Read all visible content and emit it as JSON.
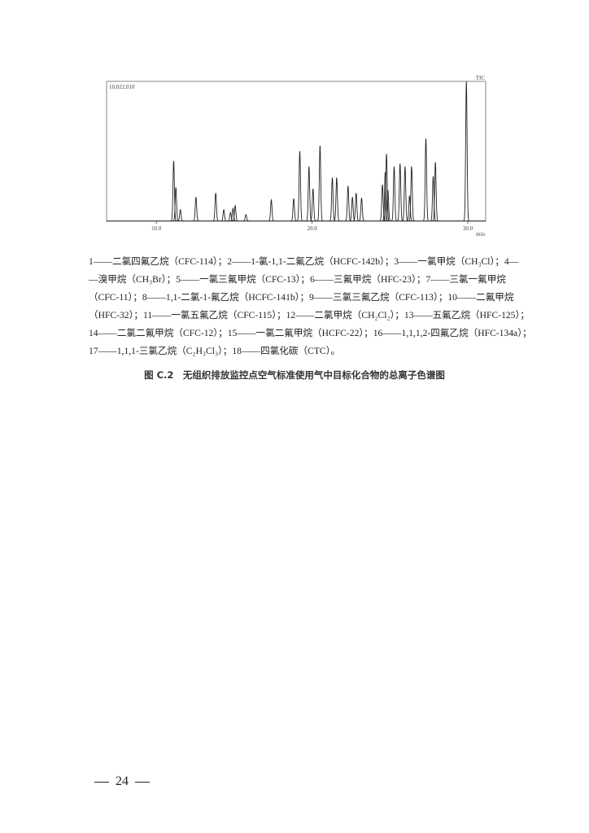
{
  "chart_data": {
    "type": "line",
    "title": "",
    "corner_label": "TIC",
    "max_intensity_label": "10,022,010",
    "xlabel": "min",
    "xlim": [
      6.8,
      31.15
    ],
    "ylim": [
      0,
      1
    ],
    "xticks": [
      {
        "value": 10,
        "label": "10.0"
      },
      {
        "value": 20,
        "label": "20.0"
      },
      {
        "value": 30,
        "label": "30.0"
      }
    ],
    "grid": false,
    "peaks": [
      {
        "rt": 11.11,
        "rel": 0.43
      },
      {
        "rt": 11.25,
        "rel": 0.24
      },
      {
        "rt": 11.54,
        "rel": 0.08
      },
      {
        "rt": 12.54,
        "rel": 0.17
      },
      {
        "rt": 13.81,
        "rel": 0.2
      },
      {
        "rt": 14.33,
        "rel": 0.08
      },
      {
        "rt": 14.76,
        "rel": 0.06
      },
      {
        "rt": 14.92,
        "rel": 0.09
      },
      {
        "rt": 15.06,
        "rel": 0.11
      },
      {
        "rt": 15.75,
        "rel": 0.045
      },
      {
        "rt": 17.38,
        "rel": 0.15
      },
      {
        "rt": 18.82,
        "rel": 0.16
      },
      {
        "rt": 19.21,
        "rel": 0.5
      },
      {
        "rt": 19.8,
        "rel": 0.39
      },
      {
        "rt": 20.06,
        "rel": 0.23
      },
      {
        "rt": 20.51,
        "rel": 0.54
      },
      {
        "rt": 21.3,
        "rel": 0.31
      },
      {
        "rt": 21.58,
        "rel": 0.31
      },
      {
        "rt": 22.31,
        "rel": 0.25
      },
      {
        "rt": 22.59,
        "rel": 0.17
      },
      {
        "rt": 22.83,
        "rel": 0.2
      },
      {
        "rt": 23.18,
        "rel": 0.165
      },
      {
        "rt": 24.52,
        "rel": 0.26
      },
      {
        "rt": 24.7,
        "rel": 0.35
      },
      {
        "rt": 24.78,
        "rel": 0.48
      },
      {
        "rt": 24.87,
        "rel": 0.22
      },
      {
        "rt": 25.27,
        "rel": 0.39
      },
      {
        "rt": 25.65,
        "rel": 0.41
      },
      {
        "rt": 25.97,
        "rel": 0.39
      },
      {
        "rt": 26.26,
        "rel": 0.18
      },
      {
        "rt": 26.39,
        "rel": 0.39
      },
      {
        "rt": 27.31,
        "rel": 0.59
      },
      {
        "rt": 27.78,
        "rel": 0.32
      },
      {
        "rt": 27.92,
        "rel": 0.42
      },
      {
        "rt": 29.91,
        "rel": 1.0
      }
    ]
  },
  "legend_lines": [
    "1——二氯四氟乙烷（CFC-114）；2——1-氯-1,1-二氟乙烷（HCFC-142b）；3——一氯甲烷（CH₃Cl）；4—",
    "—溴甲烷（CH₃Br）；5——一氯三氟甲烷（CFC-13）；6——三氟甲烷（HFC-23）；7——三氯一氟甲烷",
    "（CFC-11）；8——1,1-二氯-1-氟乙烷（HCFC-141b）；9——三氯三氟乙烷（CFC-113）；10——二氟甲烷",
    "（HFC-32）；11——一氯五氟乙烷（CFC-115）；12——二氯甲烷（CH₂Cl₂）；13——五氟乙烷（HFC-125）；",
    "14——二氯二氟甲烷（CFC-12）；15——一氯二氟甲烷（HCFC-22）；16——1,1,1,2-四氟乙烷（HFC-134a）；",
    "17——1,1,1-三氯乙烷（C₂H₃Cl₃）；18——四氯化碳（CTC）。"
  ],
  "caption": "图 C.2　无组织排放监控点空气标准使用气中目标化合物的总离子色谱图",
  "page_number": "24"
}
